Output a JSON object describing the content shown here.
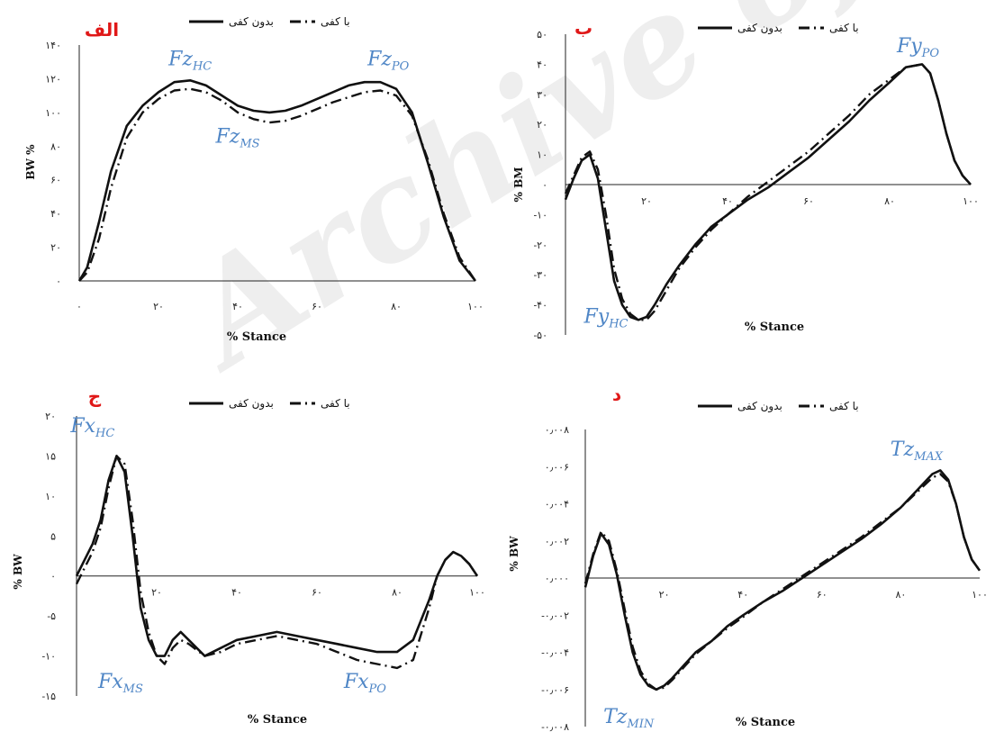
{
  "watermark": "Archive of SID",
  "styles": {
    "with_label_legend_color": "#111111",
    "annotation_color": "#4f86c6",
    "panel_label_color": "#e01818"
  },
  "chart_data": [
    {
      "type": "line",
      "panel_label": "الف",
      "legend": [
        "بدون کفی",
        "با کفی"
      ],
      "xlabel": "% Stance",
      "ylabel": "BW %",
      "xlim": [
        0,
        100
      ],
      "ylim": [
        0,
        140
      ],
      "xticks": [
        "۰",
        "۲۰",
        "۴۰",
        "۶۰",
        "۸۰",
        "۱۰۰"
      ],
      "yticks": [
        "۰",
        "۲۰",
        "۴۰",
        "۶۰",
        "۸۰",
        "۱۰۰",
        "۱۲۰",
        "۱۴۰"
      ],
      "annotations": [
        {
          "base": "Fz",
          "sub": "HC",
          "x": 28,
          "y": 128
        },
        {
          "base": "Fz",
          "sub": "PO",
          "x": 78,
          "y": 128
        },
        {
          "base": "Fz",
          "sub": "MS",
          "x": 40,
          "y": 82
        }
      ],
      "series": [
        {
          "name": "بدون کفی",
          "style": "solid",
          "x": [
            0,
            2,
            5,
            8,
            12,
            16,
            20,
            24,
            28,
            32,
            36,
            40,
            44,
            48,
            52,
            56,
            60,
            64,
            68,
            72,
            76,
            80,
            84,
            88,
            92,
            96,
            100
          ],
          "y": [
            0,
            8,
            35,
            65,
            92,
            104,
            112,
            118,
            119,
            116,
            110,
            104,
            101,
            100,
            101,
            104,
            108,
            112,
            116,
            118,
            118,
            114,
            100,
            70,
            38,
            12,
            0
          ]
        },
        {
          "name": "با کفی",
          "style": "dashdot",
          "x": [
            0,
            2,
            5,
            8,
            12,
            16,
            20,
            24,
            28,
            32,
            36,
            40,
            44,
            48,
            52,
            56,
            60,
            64,
            68,
            72,
            76,
            80,
            84,
            88,
            92,
            96,
            100
          ],
          "y": [
            0,
            5,
            25,
            55,
            85,
            100,
            108,
            113,
            114,
            112,
            107,
            100,
            96,
            94,
            95,
            98,
            102,
            106,
            109,
            112,
            113,
            110,
            98,
            72,
            40,
            14,
            0
          ]
        }
      ]
    },
    {
      "type": "line",
      "panel_label": "ب",
      "legend": [
        "بدون کفی",
        "با کفی"
      ],
      "xlabel": "% Stance",
      "ylabel": "% BM",
      "xlim": [
        0,
        100
      ],
      "ylim": [
        -50,
        50
      ],
      "xticks": [
        "۲۰",
        "۴۰",
        "۶۰",
        "۸۰",
        "۱۰۰"
      ],
      "xtick_values": [
        20,
        40,
        60,
        80,
        100
      ],
      "yticks": [
        "۵۰",
        "۴۰",
        "۳۰",
        "۲۰",
        "۱۰",
        "۰",
        "-۱۰",
        "-۲۰",
        "-۳۰",
        "-۴۰",
        "-۵۰"
      ],
      "annotations": [
        {
          "base": "Fy",
          "sub": "PO",
          "x": 87,
          "y": 44
        },
        {
          "base": "Fy",
          "sub": "HC",
          "x": 10,
          "y": -46
        }
      ],
      "series": [
        {
          "name": "بدون کفی",
          "style": "solid",
          "x": [
            0,
            2,
            4,
            6,
            8,
            10,
            12,
            14,
            16,
            18,
            20,
            22,
            25,
            28,
            32,
            36,
            40,
            45,
            50,
            55,
            60,
            65,
            70,
            75,
            80,
            84,
            88,
            90,
            92,
            94,
            96,
            98,
            100
          ],
          "y": [
            -5,
            2,
            8,
            10,
            2,
            -15,
            -32,
            -40,
            -44,
            -45,
            -44,
            -40,
            -33,
            -27,
            -20,
            -14,
            -10,
            -5,
            -1,
            4,
            9,
            15,
            21,
            28,
            34,
            39,
            40,
            37,
            28,
            17,
            8,
            3,
            0
          ]
        },
        {
          "name": "با کفی",
          "style": "dashdot",
          "x": [
            0,
            2,
            4,
            6,
            8,
            10,
            12,
            14,
            16,
            18,
            20,
            22,
            25,
            28,
            32,
            36,
            40,
            45,
            50,
            55,
            60,
            65,
            70,
            75,
            80,
            84,
            88,
            90,
            92,
            94,
            96,
            98,
            100
          ],
          "y": [
            -3,
            3,
            9,
            11,
            5,
            -10,
            -28,
            -38,
            -43,
            -45,
            -45,
            -42,
            -35,
            -28,
            -21,
            -15,
            -10,
            -4,
            1,
            6,
            11,
            17,
            23,
            30,
            35,
            39,
            40,
            37,
            28,
            17,
            8,
            3,
            0
          ]
        }
      ]
    },
    {
      "type": "line",
      "panel_label": "ج",
      "legend": [
        "بدون کفی",
        "با کفی"
      ],
      "xlabel": "% Stance",
      "ylabel": "% BW",
      "xlim": [
        0,
        100
      ],
      "ylim": [
        -15,
        20
      ],
      "xticks": [
        "۲۰",
        "۴۰",
        "۶۰",
        "۸۰",
        "۱۰۰"
      ],
      "xtick_values": [
        20,
        40,
        60,
        80,
        100
      ],
      "yticks": [
        "۲۰",
        "۱۵",
        "۱۰",
        "۵",
        "۰",
        "-۵",
        "-۱۰",
        "-۱۵"
      ],
      "annotations": [
        {
          "base": "Fx",
          "sub": "HC",
          "x": 4,
          "y": 18
        },
        {
          "base": "Fx",
          "sub": "MS",
          "x": 11,
          "y": -14
        },
        {
          "base": "Fx",
          "sub": "PO",
          "x": 72,
          "y": -14
        }
      ],
      "series": [
        {
          "name": "بدون کفی",
          "style": "solid",
          "x": [
            0,
            2,
            4,
            6,
            8,
            10,
            12,
            14,
            16,
            18,
            20,
            22,
            24,
            26,
            28,
            32,
            36,
            40,
            45,
            50,
            55,
            60,
            65,
            70,
            75,
            80,
            84,
            88,
            90,
            92,
            94,
            96,
            98,
            100
          ],
          "y": [
            0,
            2,
            4,
            7,
            12,
            15,
            13,
            5,
            -4,
            -8,
            -10,
            -10,
            -8,
            -7,
            -8,
            -10,
            -9,
            -8,
            -7.5,
            -7,
            -7.5,
            -8,
            -8.5,
            -9,
            -9.5,
            -9.5,
            -8,
            -3,
            0,
            2,
            3,
            2.5,
            1.5,
            0
          ]
        },
        {
          "name": "با کفی",
          "style": "dashdot",
          "x": [
            0,
            2,
            4,
            6,
            8,
            10,
            12,
            14,
            16,
            18,
            20,
            22,
            24,
            26,
            28,
            32,
            36,
            40,
            45,
            50,
            55,
            60,
            65,
            70,
            75,
            80,
            84,
            88,
            90,
            92,
            94,
            96,
            98,
            100
          ],
          "y": [
            -1,
            1,
            3,
            6,
            11,
            15,
            14,
            7,
            -2,
            -7,
            -10,
            -11,
            -9,
            -8,
            -8.5,
            -10,
            -9.5,
            -8.5,
            -8,
            -7.5,
            -8,
            -8.5,
            -9.5,
            -10.5,
            -11,
            -11.5,
            -10.5,
            -4,
            0,
            2,
            3,
            2.5,
            1.5,
            0
          ]
        }
      ]
    },
    {
      "type": "line",
      "panel_label": "د",
      "legend": [
        "بدون کفی",
        "با کفی"
      ],
      "xlabel": "% Stance",
      "ylabel": "% BW",
      "xlim": [
        0,
        100
      ],
      "ylim": [
        -0.008,
        0.008
      ],
      "xticks": [
        "۲۰",
        "۴۰",
        "۶۰",
        "۸۰",
        "۱۰۰"
      ],
      "xtick_values": [
        20,
        40,
        60,
        80,
        100
      ],
      "yticks": [
        "۰٫۰۰۸",
        "۰٫۰۰۶",
        "۰٫۰۰۴",
        "۰٫۰۰۲",
        "۰٫۰۰۰",
        "-۰٫۰۰۲",
        "-۰٫۰۰۴",
        "-۰٫۰۰۶",
        "-۰٫۰۰۸"
      ],
      "annotations": [
        {
          "base": "Tz",
          "sub": "MAX",
          "x": 84,
          "y": 0.0066
        },
        {
          "base": "Tz",
          "sub": "MIN",
          "x": 11,
          "y": -0.0078
        }
      ],
      "series": [
        {
          "name": "بدون کفی",
          "style": "solid",
          "x": [
            0,
            2,
            4,
            6,
            8,
            10,
            12,
            14,
            16,
            18,
            20,
            22,
            25,
            28,
            32,
            36,
            40,
            45,
            50,
            55,
            60,
            65,
            70,
            75,
            80,
            84,
            88,
            90,
            92,
            94,
            96,
            98,
            100
          ],
          "y": [
            -0.0005,
            0.0012,
            0.0024,
            0.0018,
            0.0002,
            -0.002,
            -0.004,
            -0.0052,
            -0.0058,
            -0.006,
            -0.0058,
            -0.0054,
            -0.0047,
            -0.004,
            -0.0034,
            -0.0026,
            -0.002,
            -0.0013,
            -0.0007,
            0,
            0.0007,
            0.0014,
            0.0021,
            0.0029,
            0.0038,
            0.0047,
            0.0056,
            0.0058,
            0.0053,
            0.004,
            0.0022,
            0.001,
            0.0004
          ]
        },
        {
          "name": "با کفی",
          "style": "dashdot",
          "x": [
            0,
            2,
            4,
            6,
            8,
            10,
            12,
            14,
            16,
            18,
            20,
            22,
            25,
            28,
            32,
            36,
            40,
            45,
            50,
            55,
            60,
            65,
            70,
            75,
            80,
            84,
            88,
            90,
            92,
            94,
            96,
            98,
            100
          ],
          "y": [
            -0.0003,
            0.0013,
            0.0025,
            0.002,
            0.0004,
            -0.0017,
            -0.0037,
            -0.005,
            -0.0057,
            -0.006,
            -0.0059,
            -0.0055,
            -0.0048,
            -0.0041,
            -0.0034,
            -0.0027,
            -0.0021,
            -0.0013,
            -0.0006,
            0.0001,
            0.0008,
            0.0015,
            0.0022,
            0.003,
            0.0038,
            0.0046,
            0.0054,
            0.0056,
            0.0052,
            0.004,
            0.0022,
            0.001,
            0.0004
          ]
        }
      ]
    }
  ]
}
